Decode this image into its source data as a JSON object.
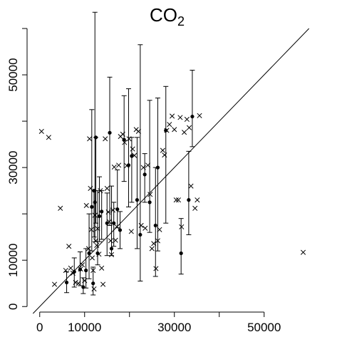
{
  "chart_data": {
    "type": "scatter",
    "title": "CO",
    "title_subscript": "2",
    "xlabel": "",
    "ylabel": "",
    "xlim": [
      -2500,
      61000
    ],
    "ylim": [
      -1500,
      60000
    ],
    "x_ticks": [
      0,
      10000,
      20000,
      30000,
      40000,
      50000
    ],
    "x_tick_labels": [
      "0",
      "10000",
      "",
      "30000",
      "",
      "50000"
    ],
    "y_ticks": [
      0,
      10000,
      20000,
      30000,
      40000,
      50000,
      60000
    ],
    "y_tick_labels": [
      "0",
      "10000",
      "",
      "30000",
      "",
      "50000",
      ""
    ],
    "reference_line": "y = x",
    "grid": false,
    "legend": "none",
    "cross_points": [
      [
        400,
        37800
      ],
      [
        2000,
        36500
      ],
      [
        3300,
        4800
      ],
      [
        4600,
        21200
      ],
      [
        5800,
        7800
      ],
      [
        6500,
        13000
      ],
      [
        6900,
        8300
      ],
      [
        7400,
        7200
      ],
      [
        8000,
        5200
      ],
      [
        8600,
        5000
      ],
      [
        9100,
        8100
      ],
      [
        9500,
        9000
      ],
      [
        10000,
        5600
      ],
      [
        10400,
        21800
      ],
      [
        10900,
        12500
      ],
      [
        11100,
        36200
      ],
      [
        11300,
        25500
      ],
      [
        11500,
        16600
      ],
      [
        11700,
        10500
      ],
      [
        11900,
        7800
      ],
      [
        12100,
        3800
      ],
      [
        12300,
        19700
      ],
      [
        12500,
        14200
      ],
      [
        12700,
        13200
      ],
      [
        12900,
        16800
      ],
      [
        13200,
        11300
      ],
      [
        13500,
        25000
      ],
      [
        13800,
        8300
      ],
      [
        14100,
        4800
      ],
      [
        14600,
        36200
      ],
      [
        15000,
        25500
      ],
      [
        15300,
        20400
      ],
      [
        15500,
        18300
      ],
      [
        15800,
        14200
      ],
      [
        16000,
        11200
      ],
      [
        16300,
        20800
      ],
      [
        16600,
        30100
      ],
      [
        16900,
        14300
      ],
      [
        17200,
        17200
      ],
      [
        17600,
        30500
      ],
      [
        18000,
        36700
      ],
      [
        18500,
        37200
      ],
      [
        18900,
        35400
      ],
      [
        19400,
        30400
      ],
      [
        19900,
        36200
      ],
      [
        20400,
        16200
      ],
      [
        20700,
        34000
      ],
      [
        21100,
        32600
      ],
      [
        21500,
        38200
      ],
      [
        22000,
        37800
      ],
      [
        22600,
        17500
      ],
      [
        23100,
        30000
      ],
      [
        23500,
        16900
      ],
      [
        24100,
        30500
      ],
      [
        24600,
        24200
      ],
      [
        25000,
        12500
      ],
      [
        25400,
        13600
      ],
      [
        25900,
        8200
      ],
      [
        26300,
        14200
      ],
      [
        26700,
        16600
      ],
      [
        27400,
        33700
      ],
      [
        27800,
        32700
      ],
      [
        28300,
        38000
      ],
      [
        28900,
        39300
      ],
      [
        29500,
        41100
      ],
      [
        30000,
        38200
      ],
      [
        30400,
        23000
      ],
      [
        30900,
        23000
      ],
      [
        31300,
        40800
      ],
      [
        31600,
        17200
      ],
      [
        32200,
        37600
      ],
      [
        32800,
        40400
      ],
      [
        33300,
        38600
      ],
      [
        33700,
        26000
      ],
      [
        34600,
        21200
      ],
      [
        35100,
        23000
      ],
      [
        35600,
        41200
      ],
      [
        58700,
        11700
      ]
    ],
    "error_bar_points": [
      {
        "x": 6000,
        "y": 5200,
        "lo": 3000,
        "hi": 7500
      },
      {
        "x": 7700,
        "y": 7500,
        "lo": 4200,
        "hi": 10500
      },
      {
        "x": 9000,
        "y": 8000,
        "lo": 4500,
        "hi": 11800
      },
      {
        "x": 9700,
        "y": 4200,
        "lo": 2800,
        "hi": 6200
      },
      {
        "x": 10300,
        "y": 7800,
        "lo": 4000,
        "hi": 12500
      },
      {
        "x": 11000,
        "y": 11500,
        "lo": 6000,
        "hi": 20000
      },
      {
        "x": 11600,
        "y": 21500,
        "lo": 12000,
        "hi": 42500
      },
      {
        "x": 11900,
        "y": 5000,
        "lo": 2500,
        "hi": 8500
      },
      {
        "x": 12100,
        "y": 25000,
        "lo": 15000,
        "hi": 25000
      },
      {
        "x": 12300,
        "y": 22500,
        "lo": 14000,
        "hi": 63500
      },
      {
        "x": 12500,
        "y": 36500,
        "lo": 18000,
        "hi": 36500
      },
      {
        "x": 12900,
        "y": 11500,
        "lo": 9000,
        "hi": 25000
      },
      {
        "x": 13300,
        "y": 19500,
        "lo": 14000,
        "hi": 28000
      },
      {
        "x": 13800,
        "y": 20500,
        "lo": 14500,
        "hi": 25000
      },
      {
        "x": 15000,
        "y": 18000,
        "lo": 11000,
        "hi": 24500
      },
      {
        "x": 15600,
        "y": 37500,
        "lo": 17500,
        "hi": 49500
      },
      {
        "x": 16000,
        "y": 12500,
        "lo": 11000,
        "hi": 26000
      },
      {
        "x": 16500,
        "y": 18000,
        "lo": 13000,
        "hi": 22500
      },
      {
        "x": 17300,
        "y": 21000,
        "lo": 17000,
        "hi": 29500
      },
      {
        "x": 17900,
        "y": 16500,
        "lo": 12500,
        "hi": 20500
      },
      {
        "x": 18800,
        "y": 36000,
        "lo": 27000,
        "hi": 45500
      },
      {
        "x": 19800,
        "y": 30500,
        "lo": 21500,
        "hi": 47000
      },
      {
        "x": 20500,
        "y": 32500,
        "lo": 22500,
        "hi": 36500
      },
      {
        "x": 21700,
        "y": 23000,
        "lo": 12500,
        "hi": 36500
      },
      {
        "x": 22400,
        "y": 15500,
        "lo": 5500,
        "hi": 56500
      },
      {
        "x": 23400,
        "y": 28500,
        "lo": 22500,
        "hi": 33000
      },
      {
        "x": 24500,
        "y": 22500,
        "lo": 16000,
        "hi": 44500
      },
      {
        "x": 25800,
        "y": 17500,
        "lo": 6500,
        "hi": 30000
      },
      {
        "x": 26300,
        "y": 30000,
        "lo": 12000,
        "hi": 45000
      },
      {
        "x": 28100,
        "y": 38000,
        "lo": 18000,
        "hi": 47500
      },
      {
        "x": 31500,
        "y": 11500,
        "lo": 7000,
        "hi": 19000
      },
      {
        "x": 33200,
        "y": 23000,
        "lo": 15500,
        "hi": 33500
      },
      {
        "x": 34000,
        "y": 41000,
        "lo": 34500,
        "hi": 51000
      }
    ]
  }
}
